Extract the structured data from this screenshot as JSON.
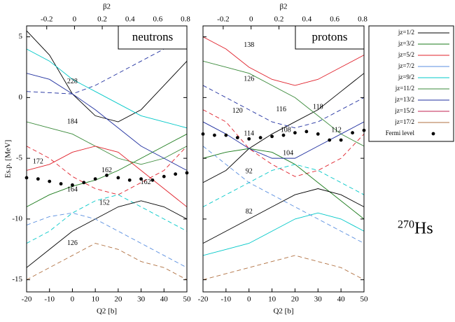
{
  "chart_data": [
    {
      "type": "line",
      "label": "neutrons",
      "x_label": "Q2 [b]",
      "x2_label": "β2",
      "y_label": "Es.p. [MeV]",
      "show_ytick_labels": true,
      "xlim": [
        -20,
        50
      ],
      "xticks": [
        -20,
        -10,
        0,
        10,
        20,
        30,
        40,
        50
      ],
      "x2lim": [
        -0.345,
        0.81
      ],
      "x2ticks": [
        -0.2,
        0,
        0.2,
        0.4,
        0.6,
        0.8
      ],
      "ylim": [
        -16,
        5.9
      ],
      "yticks": [
        -15,
        -10,
        -5,
        0,
        5
      ],
      "x": [
        -20,
        -10,
        0,
        10,
        20,
        30,
        40,
        50
      ],
      "series": [
        {
          "color": "#000000",
          "dashed": false,
          "values": [
            5.5,
            3.5,
            0.3,
            -1.5,
            -2,
            -1,
            1,
            3
          ]
        },
        {
          "color": "#e0202a",
          "dashed": true,
          "values": [
            -4,
            -5,
            -6.5,
            -7.5,
            -8,
            -7,
            -6,
            -4
          ]
        },
        {
          "color": "#1a7a1a",
          "dashed": false,
          "values": [
            -9,
            -8,
            -7.3,
            -6.8,
            -6,
            -5,
            -4,
            -3
          ]
        },
        {
          "color": "#00c8c8",
          "dashed": true,
          "values": [
            -12,
            -11,
            -9.5,
            -8.5,
            -8,
            -9,
            -10,
            -11
          ]
        },
        {
          "color": "#1f2f9f",
          "dashed": true,
          "values": [
            0.5,
            0.4,
            0.3,
            1,
            2,
            3,
            4,
            5
          ]
        },
        {
          "color": "#3a8a3a",
          "dashed": false,
          "values": [
            -2,
            -2.5,
            -3,
            -4,
            -5,
            -5.5,
            -5,
            -4
          ]
        },
        {
          "color": "#000000",
          "dashed": false,
          "values": [
            -14,
            -12.5,
            -11,
            -10,
            -9,
            -8.5,
            -9,
            -10
          ]
        },
        {
          "color": "#1f2f9f",
          "dashed": false,
          "values": [
            2,
            1.5,
            0.3,
            -1,
            -2.5,
            -4,
            -5,
            -6
          ]
        },
        {
          "color": "#e0202a",
          "dashed": false,
          "values": [
            -6,
            -5.5,
            -4.5,
            -4,
            -4.5,
            -6,
            -7.5,
            -9
          ]
        },
        {
          "color": "#00c8c8",
          "dashed": false,
          "values": [
            4,
            3,
            1.5,
            0.5,
            -0.5,
            -1.5,
            -2,
            -2.5
          ]
        },
        {
          "color": "#5a8fe0",
          "dashed": true,
          "values": [
            -10.5,
            -9.8,
            -9.5,
            -10,
            -11,
            -12,
            -13,
            -14
          ]
        },
        {
          "color": "#b07040",
          "dashed": true,
          "values": [
            -15,
            -14,
            -13,
            -12,
            -12.5,
            -13.5,
            -14,
            -15
          ]
        }
      ],
      "fermi": {
        "x": [
          -20,
          -15,
          -10,
          -5,
          0,
          5,
          10,
          15,
          20,
          25,
          30,
          35,
          40,
          45,
          50
        ],
        "values": [
          -6.6,
          -6.7,
          -6.9,
          -7.1,
          -7.2,
          -7.0,
          -6.7,
          -6.4,
          -6.6,
          -6.8,
          -6.7,
          -6.8,
          -6.5,
          -6.3,
          -6.2
        ]
      },
      "annotations": [
        {
          "text": "228",
          "x": 0,
          "y": 1.3
        },
        {
          "text": "184",
          "x": 0,
          "y": -2
        },
        {
          "text": "172",
          "x": -15,
          "y": -5.3
        },
        {
          "text": "162",
          "x": 15,
          "y": -6
        },
        {
          "text": "164",
          "x": 0,
          "y": -7.6
        },
        {
          "text": "162",
          "x": 32,
          "y": -7
        },
        {
          "text": "152",
          "x": 14,
          "y": -8.7
        },
        {
          "text": "126",
          "x": 0,
          "y": -12
        }
      ]
    },
    {
      "type": "line",
      "label": "protons",
      "x_label": "Q2 [b]",
      "x2_label": "β2",
      "show_ytick_labels": false,
      "xlim": [
        -20,
        50
      ],
      "xticks": [
        -20,
        -10,
        0,
        10,
        20,
        30,
        40,
        50
      ],
      "x2lim": [
        -0.345,
        0.81
      ],
      "x2ticks": [
        -0.2,
        0,
        0.2,
        0.4,
        0.6,
        0.8
      ],
      "ylim": [
        -16,
        5.9
      ],
      "yticks": [
        -15,
        -10,
        -5,
        0,
        5
      ],
      "x": [
        -20,
        -10,
        0,
        10,
        20,
        30,
        40,
        50
      ],
      "series": [
        {
          "color": "#000000",
          "dashed": false,
          "values": [
            -7,
            -6,
            -4.2,
            -3,
            -2,
            -1,
            0.5,
            2
          ]
        },
        {
          "color": "#e0202a",
          "dashed": true,
          "values": [
            -1,
            -2,
            -4.2,
            -5.5,
            -6.5,
            -6,
            -5,
            -3
          ]
        },
        {
          "color": "#1a7a1a",
          "dashed": false,
          "values": [
            -5,
            -4.5,
            -4.2,
            -4.5,
            -5.5,
            -7,
            -8.5,
            -10
          ]
        },
        {
          "color": "#00c8c8",
          "dashed": true,
          "values": [
            -9,
            -8,
            -7,
            -6,
            -5.5,
            -6,
            -7,
            -8
          ]
        },
        {
          "color": "#1f2f9f",
          "dashed": true,
          "values": [
            1,
            0,
            -1,
            -2,
            -2.5,
            -2,
            -1,
            0
          ]
        },
        {
          "color": "#3a8a3a",
          "dashed": false,
          "values": [
            3,
            2.5,
            2,
            1,
            0,
            -1.5,
            -3,
            -4
          ]
        },
        {
          "color": "#000000",
          "dashed": false,
          "values": [
            -12,
            -11,
            -10,
            -9,
            -8,
            -7.5,
            -8,
            -9
          ]
        },
        {
          "color": "#1f2f9f",
          "dashed": false,
          "values": [
            -2,
            -3,
            -4.2,
            -5,
            -5,
            -4,
            -3,
            -2
          ]
        },
        {
          "color": "#e0202a",
          "dashed": false,
          "values": [
            5,
            4,
            2.5,
            1.5,
            1,
            1.5,
            2.5,
            3.5
          ]
        },
        {
          "color": "#00c8c8",
          "dashed": false,
          "values": [
            -13,
            -12.5,
            -12,
            -11,
            -10,
            -9.5,
            -10,
            -11
          ]
        },
        {
          "color": "#5a8fe0",
          "dashed": true,
          "values": [
            -4,
            -5.5,
            -7,
            -8,
            -9,
            -10,
            -11,
            -12
          ]
        },
        {
          "color": "#b07040",
          "dashed": true,
          "values": [
            -15,
            -14.5,
            -14,
            -13.5,
            -13,
            -13.5,
            -14,
            -15
          ]
        }
      ],
      "fermi": {
        "x": [
          -20,
          -15,
          -10,
          -5,
          0,
          5,
          10,
          15,
          20,
          25,
          30,
          35,
          40,
          45,
          50
        ],
        "values": [
          -3.0,
          -3.1,
          -3.1,
          -3.3,
          -3.4,
          -3.3,
          -3.2,
          -3.1,
          -2.9,
          -2.8,
          -3.0,
          -3.5,
          -3.5,
          -2.9,
          -2.7
        ]
      },
      "annotations": [
        {
          "text": "138",
          "x": 0,
          "y": 4.3
        },
        {
          "text": "126",
          "x": 0,
          "y": 1.5
        },
        {
          "text": "120",
          "x": -5,
          "y": -1.1
        },
        {
          "text": "116",
          "x": 14,
          "y": -1
        },
        {
          "text": "118",
          "x": 30,
          "y": -0.8
        },
        {
          "text": "114",
          "x": 0,
          "y": -3
        },
        {
          "text": "108",
          "x": 16,
          "y": -2.7
        },
        {
          "text": "112",
          "x": 38,
          "y": -2.7
        },
        {
          "text": "104",
          "x": 17,
          "y": -4.6
        },
        {
          "text": "92",
          "x": 0,
          "y": -6.1
        },
        {
          "text": "82",
          "x": 0,
          "y": -9.4
        }
      ]
    }
  ],
  "legend": {
    "entries": [
      {
        "name": "jz=1/2",
        "color": "#000000"
      },
      {
        "name": "jz=3/2",
        "color": "#1a7a1a"
      },
      {
        "name": "jz=5/2",
        "color": "#e0202a"
      },
      {
        "name": "jz=7/2",
        "color": "#5a8fe0"
      },
      {
        "name": "jz=9/2",
        "color": "#00c8c8"
      },
      {
        "name": "jz=11/2",
        "color": "#3a8a3a"
      },
      {
        "name": "jz=13/2",
        "color": "#1f2f9f"
      },
      {
        "name": "jz=15/2",
        "color": "#c02050"
      },
      {
        "name": "jz=17/2",
        "color": "#b07040"
      }
    ],
    "fermi": "Fermi level"
  },
  "nucleus": {
    "mass": "270",
    "symbol": "Hs"
  }
}
